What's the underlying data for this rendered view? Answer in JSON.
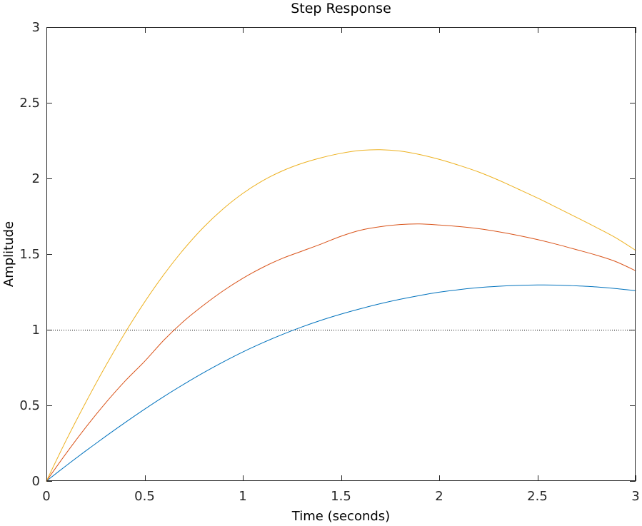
{
  "chart_data": {
    "type": "line",
    "title": "Step Response",
    "xlabel": "Time (seconds)",
    "ylabel": "Amplitude",
    "xlim": [
      0,
      3
    ],
    "ylim": [
      0,
      3
    ],
    "xticks": [
      0,
      0.5,
      1,
      1.5,
      2,
      2.5,
      3
    ],
    "xtick_labels": [
      "0",
      "0.5",
      "1",
      "1.5",
      "2",
      "2.5",
      "3"
    ],
    "yticks": [
      0,
      0.5,
      1,
      1.5,
      2,
      2.5,
      3
    ],
    "ytick_labels": [
      "0",
      "0.5",
      "1",
      "1.5",
      "2",
      "2.5",
      "3"
    ],
    "grid": false,
    "box": true,
    "reference_line": {
      "y": 1,
      "style": "dotted",
      "color": "#000000"
    },
    "x": [
      0,
      0.1,
      0.2,
      0.3,
      0.4,
      0.5,
      0.6,
      0.7,
      0.8,
      0.9,
      1.0,
      1.1,
      1.2,
      1.3,
      1.4,
      1.5,
      1.6,
      1.7,
      1.8,
      1.9,
      2.0,
      2.1,
      2.2,
      2.3,
      2.4,
      2.5,
      2.6,
      2.7,
      2.8,
      2.9,
      3.0
    ],
    "series": [
      {
        "color": "#0072BD",
        "values": [
          0,
          0.101,
          0.199,
          0.294,
          0.386,
          0.475,
          0.56,
          0.64,
          0.716,
          0.787,
          0.853,
          0.913,
          0.968,
          1.018,
          1.063,
          1.103,
          1.139,
          1.172,
          1.201,
          1.226,
          1.248,
          1.265,
          1.278,
          1.287,
          1.293,
          1.296,
          1.295,
          1.29,
          1.283,
          1.272,
          1.258
        ]
      },
      {
        "color": "#D95319",
        "values": [
          0,
          0.182,
          0.354,
          0.514,
          0.66,
          0.791,
          0.934,
          1.057,
          1.162,
          1.257,
          1.34,
          1.411,
          1.471,
          1.519,
          1.567,
          1.618,
          1.658,
          1.681,
          1.695,
          1.699,
          1.692,
          1.682,
          1.668,
          1.648,
          1.624,
          1.596,
          1.564,
          1.529,
          1.493,
          1.45,
          1.39
        ]
      },
      {
        "color": "#EDB120",
        "values": [
          0,
          0.268,
          0.519,
          0.757,
          0.979,
          1.183,
          1.368,
          1.533,
          1.677,
          1.799,
          1.901,
          1.984,
          2.049,
          2.099,
          2.137,
          2.166,
          2.185,
          2.19,
          2.181,
          2.158,
          2.126,
          2.087,
          2.043,
          1.99,
          1.931,
          1.871,
          1.807,
          1.742,
          1.676,
          1.607,
          1.525
        ]
      }
    ]
  }
}
